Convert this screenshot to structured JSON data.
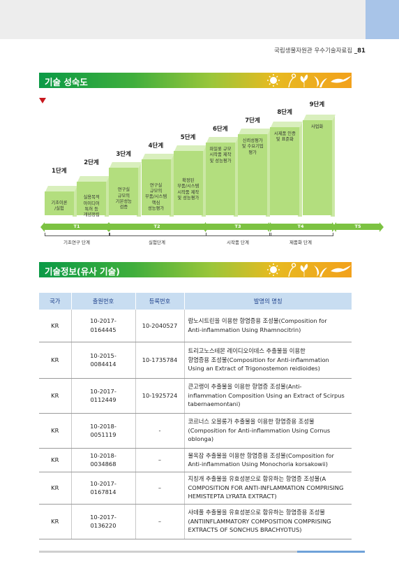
{
  "header": {
    "book_title": "국립생물자원관 우수기술자료집",
    "page_number": "81"
  },
  "maturity": {
    "title": "기술 성숙도",
    "steps": [
      {
        "label": "1단계",
        "text": "기초이론\n/실험"
      },
      {
        "label": "2단계",
        "text": "실용목적\n아이디어\n특허 등\n개념정립"
      },
      {
        "label": "3단계",
        "text": "연구실\n규모의\n기본성능\n검증"
      },
      {
        "label": "4단계",
        "text": "연구실\n규모의\n부품/시스템\n핵심\n성능평가"
      },
      {
        "label": "5단계",
        "text": "확정된\n부품/시스템\n시작품 제작\n및 성능평가"
      },
      {
        "label": "6단계",
        "text": "파일롯 규모\n시작품 제작\n및 성능평가"
      },
      {
        "label": "7단계",
        "text": "신뢰성평가\n및 수요기업\n평가"
      },
      {
        "label": "8단계",
        "text": "시제품 인증\n및 표준화"
      },
      {
        "label": "9단계",
        "text": "사업화"
      }
    ],
    "current_step": 3,
    "stages": [
      "T1",
      "T2",
      "T3",
      "T4",
      "T5"
    ],
    "phases": [
      "기초연구 단계",
      "실험단계",
      "시작품 단계",
      "제품화 단계"
    ]
  },
  "techinfo": {
    "title": "기술정보(유사 기술)",
    "columns": [
      "국가",
      "출원번호",
      "등록번호",
      "발명의 명칭"
    ],
    "rows": [
      {
        "country": "KR",
        "app_no": "10-2017-\n0164445",
        "reg_no": "10-2040527",
        "title": "람노시트린을 이용한 항염증용 조성물(Composition for\nAnti-inflammation Using Rhamnocitrin)"
      },
      {
        "country": "KR",
        "app_no": "10-2015-\n0084414",
        "reg_no": "10-1735784",
        "title": "트리고노스테몬 레이디오이데스 추출물을 이용한\n항염증용 조성물(Composition for Anti-inflammation\nUsing an Extract of Trigonostemon reidioides)"
      },
      {
        "country": "KR",
        "app_no": "10-2017-\n0112449",
        "reg_no": "10-1925724",
        "title": "큰고랭이 추출물을 이용한 항염증 조성물(Anti-\ninflammation Composition Using an Extract of Scirpus\ntabernaemontani)"
      },
      {
        "country": "KR",
        "app_no": "10-2018-\n0051119",
        "reg_no": "-",
        "title": "코르너스 오블롱가 추출물을 이용한 항염증용 조성물\n(Composition for Anti-inflammation Using Cornus\noblonga)"
      },
      {
        "country": "KR",
        "app_no": "10-2018-\n0034868",
        "reg_no": "–",
        "title": "물옥잠 추출물을 이용한 항염증용 조성물(Composition for\nAnti-inflammation Using Monochoria korsakowii)"
      },
      {
        "country": "KR",
        "app_no": "10-2017-\n0167814",
        "reg_no": "–",
        "title": "지칭개 추출물을 유효성분으로 함유하는 항염증 조성물(A\nCOMPOSITION FOR ANTI-INFLAMMATION COMPRISING\nHEMISTEPTA LYRATA EXTRACT)"
      },
      {
        "country": "KR",
        "app_no": "10-2017-\n0136220",
        "reg_no": "–",
        "title": "사데풀 추출물을 유효성분으로 함유하는 항염증용 조성물\n(ANTIINFLAMMATORY COMPOSITION COMPRISING\nEXTRACTS OF SONCHUS BRACHYOTUS)"
      }
    ]
  },
  "colors": {
    "accent_green": "#7cc242",
    "header_blue": "#c8ddf1",
    "marker_red": "#c8181e"
  }
}
